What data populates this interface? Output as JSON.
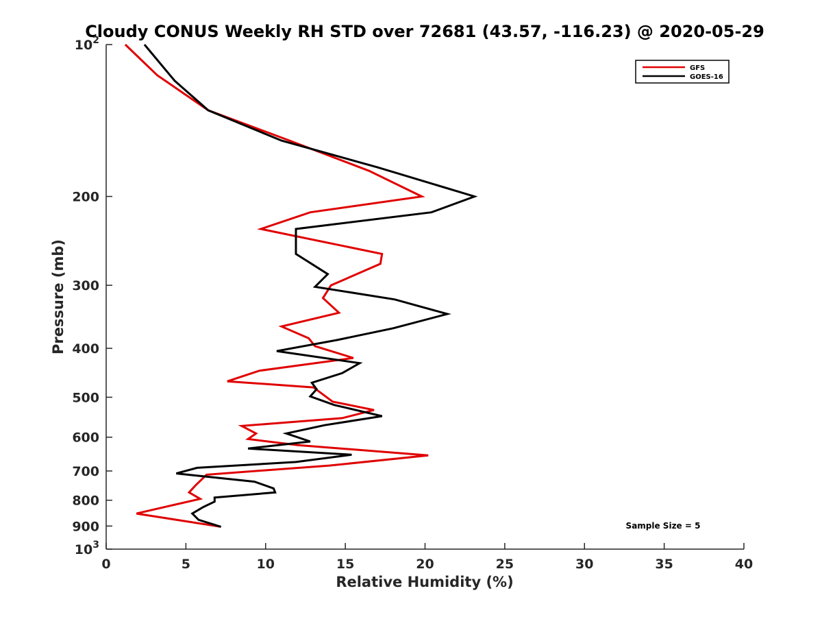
{
  "chart_data": {
    "type": "line",
    "title": "Cloudy CONUS Weekly RH STD over 72681 (43.57, -116.23) @ 2020-05-29",
    "xlabel": "Relative Humidity (%)",
    "ylabel": "Pressure (mb)",
    "xlim": [
      0,
      40
    ],
    "ylim": [
      1000,
      100
    ],
    "y_scale": "log",
    "y_reversed": true,
    "grid": false,
    "x_ticks": [
      0,
      5,
      10,
      15,
      20,
      25,
      30,
      35,
      40
    ],
    "x_tick_labels": [
      "0",
      "5",
      "10",
      "15",
      "20",
      "25",
      "30",
      "35",
      "40"
    ],
    "y_ticks": [
      100,
      200,
      300,
      400,
      500,
      600,
      700,
      800,
      900,
      1000
    ],
    "y_tick_labels": [
      {
        "base": "10",
        "exp": "2"
      },
      {
        "base": "200",
        "exp": ""
      },
      {
        "base": "300",
        "exp": ""
      },
      {
        "base": "400",
        "exp": ""
      },
      {
        "base": "500",
        "exp": ""
      },
      {
        "base": "600",
        "exp": ""
      },
      {
        "base": "700",
        "exp": ""
      },
      {
        "base": "800",
        "exp": ""
      },
      {
        "base": "900",
        "exp": ""
      },
      {
        "base": "10",
        "exp": "3"
      }
    ],
    "legend_position": "top-right",
    "annotation": "Sample Size = 5",
    "series": [
      {
        "name": "GFS",
        "color": "#e00000",
        "points": [
          [
            1.2,
            100
          ],
          [
            3.2,
            115
          ],
          [
            6.4,
            135
          ],
          [
            11.5,
            155
          ],
          [
            16.5,
            178
          ],
          [
            19.8,
            200
          ],
          [
            12.8,
            215
          ],
          [
            9.7,
            232
          ],
          [
            17.3,
            260
          ],
          [
            17.2,
            272
          ],
          [
            14.1,
            300
          ],
          [
            13.6,
            318
          ],
          [
            14.6,
            340
          ],
          [
            11.0,
            362
          ],
          [
            12.7,
            382
          ],
          [
            13.1,
            396
          ],
          [
            15.5,
            418
          ],
          [
            9.6,
            443
          ],
          [
            7.6,
            465
          ],
          [
            13.0,
            478
          ],
          [
            14.2,
            510
          ],
          [
            16.8,
            530
          ],
          [
            14.8,
            550
          ],
          [
            8.5,
            570
          ],
          [
            9.4,
            590
          ],
          [
            8.9,
            605
          ],
          [
            12.0,
            622
          ],
          [
            20.2,
            652
          ],
          [
            14.0,
            683
          ],
          [
            6.3,
            712
          ],
          [
            5.6,
            748
          ],
          [
            5.2,
            772
          ],
          [
            5.9,
            795
          ],
          [
            3.9,
            822
          ],
          [
            1.9,
            850
          ],
          [
            7.2,
            903
          ]
        ]
      },
      {
        "name": "GOES-16",
        "color": "#000000",
        "points": [
          [
            2.4,
            100
          ],
          [
            4.3,
            118
          ],
          [
            6.4,
            135
          ],
          [
            11.0,
            155
          ],
          [
            17.0,
            175
          ],
          [
            23.1,
            200
          ],
          [
            20.4,
            215
          ],
          [
            11.9,
            232
          ],
          [
            11.9,
            260
          ],
          [
            13.9,
            285
          ],
          [
            13.1,
            302
          ],
          [
            18.1,
            320
          ],
          [
            21.4,
            342
          ],
          [
            18.0,
            365
          ],
          [
            14.5,
            385
          ],
          [
            10.7,
            405
          ],
          [
            15.9,
            428
          ],
          [
            14.8,
            448
          ],
          [
            12.9,
            468
          ],
          [
            13.2,
            482
          ],
          [
            12.8,
            498
          ],
          [
            14.3,
            518
          ],
          [
            17.3,
            545
          ],
          [
            13.7,
            568
          ],
          [
            11.3,
            590
          ],
          [
            12.8,
            612
          ],
          [
            8.9,
            632
          ],
          [
            15.4,
            650
          ],
          [
            11.9,
            672
          ],
          [
            5.7,
            690
          ],
          [
            4.4,
            708
          ],
          [
            9.3,
            735
          ],
          [
            10.5,
            758
          ],
          [
            10.6,
            772
          ],
          [
            6.8,
            790
          ],
          [
            6.8,
            805
          ],
          [
            6.1,
            825
          ],
          [
            5.4,
            850
          ],
          [
            5.8,
            875
          ],
          [
            7.2,
            903
          ]
        ]
      }
    ]
  }
}
